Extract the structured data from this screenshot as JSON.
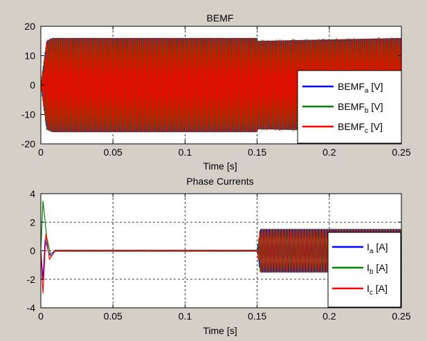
{
  "chart_data": [
    {
      "type": "line",
      "title": "BEMF",
      "xlabel": "Time [s]",
      "ylabel": "",
      "xlim": [
        0,
        0.25
      ],
      "ylim": [
        -20,
        20
      ],
      "x_ticks": [
        0,
        0.05,
        0.1,
        0.15,
        0.2,
        0.25
      ],
      "x_tick_labels": [
        "0",
        "0.05",
        "0.1",
        "0.15",
        "0.2",
        "0.25"
      ],
      "y_ticks": [
        -20,
        -10,
        0,
        10,
        20
      ],
      "y_tick_labels": [
        "-20",
        "-10",
        "0",
        "10",
        "20"
      ],
      "grid": true,
      "legend_position": "right",
      "series": [
        {
          "name": "BEMF",
          "sub": "a",
          "unit": " [V]",
          "color": "#0000ff",
          "phase_deg": 0,
          "envelope": [
            [
              0,
              0
            ],
            [
              0.004,
              15
            ],
            [
              0.008,
              16
            ],
            [
              0.15,
              16
            ],
            [
              0.1505,
              15
            ],
            [
              0.25,
              16
            ]
          ]
        },
        {
          "name": "BEMF",
          "sub": "b",
          "unit": " [V]",
          "color": "#008000",
          "phase_deg": -120,
          "envelope": [
            [
              0,
              0
            ],
            [
              0.004,
              15
            ],
            [
              0.008,
              16
            ],
            [
              0.15,
              16
            ],
            [
              0.1505,
              15
            ],
            [
              0.25,
              16
            ]
          ]
        },
        {
          "name": "BEMF",
          "sub": "c",
          "unit": " [V]",
          "color": "#ff0000",
          "phase_deg": 120,
          "envelope": [
            [
              0,
              0
            ],
            [
              0.004,
              15
            ],
            [
              0.008,
              16
            ],
            [
              0.15,
              16
            ],
            [
              0.1505,
              15
            ],
            [
              0.25,
              16
            ]
          ]
        }
      ]
    },
    {
      "type": "line",
      "title": "Phase Currents",
      "xlabel": "Time [s]",
      "ylabel": "",
      "xlim": [
        0,
        0.25
      ],
      "ylim": [
        -4,
        4
      ],
      "x_ticks": [
        0,
        0.05,
        0.1,
        0.15,
        0.2,
        0.25
      ],
      "x_tick_labels": [
        "0",
        "0.05",
        "0.1",
        "0.15",
        "0.2",
        "0.25"
      ],
      "y_ticks": [
        -4,
        -2,
        0,
        2,
        4
      ],
      "y_tick_labels": [
        "-4",
        "-2",
        "0",
        "2",
        "4"
      ],
      "grid": true,
      "legend_position": "right",
      "series": [
        {
          "name": "I",
          "sub": "a",
          "unit": " [A]",
          "color": "#0000ff",
          "phase_deg": 0,
          "transient": [
            [
              0,
              0
            ],
            [
              0.0015,
              -2.0
            ],
            [
              0.003,
              0.8
            ],
            [
              0.006,
              -0.3
            ],
            [
              0.01,
              0
            ],
            [
              0.15,
              0
            ]
          ],
          "envelope": [
            [
              0.15,
              0
            ],
            [
              0.152,
              1.5
            ],
            [
              0.25,
              1.5
            ]
          ]
        },
        {
          "name": "I",
          "sub": "b",
          "unit": " [A]",
          "color": "#008000",
          "phase_deg": -120,
          "transient": [
            [
              0,
              0
            ],
            [
              0.0015,
              3.5
            ],
            [
              0.004,
              1.0
            ],
            [
              0.007,
              -0.4
            ],
            [
              0.01,
              0
            ],
            [
              0.15,
              0
            ]
          ],
          "envelope": [
            [
              0.15,
              0
            ],
            [
              0.152,
              1.5
            ],
            [
              0.25,
              1.5
            ]
          ]
        },
        {
          "name": "I",
          "sub": "c",
          "unit": " [A]",
          "color": "#ff0000",
          "phase_deg": 120,
          "transient": [
            [
              0,
              0
            ],
            [
              0.0015,
              -3.0
            ],
            [
              0.0035,
              1.2
            ],
            [
              0.006,
              -0.6
            ],
            [
              0.01,
              0
            ],
            [
              0.15,
              0
            ]
          ],
          "envelope": [
            [
              0.15,
              0
            ],
            [
              0.152,
              1.5
            ],
            [
              0.25,
              1.5
            ]
          ]
        }
      ]
    }
  ]
}
